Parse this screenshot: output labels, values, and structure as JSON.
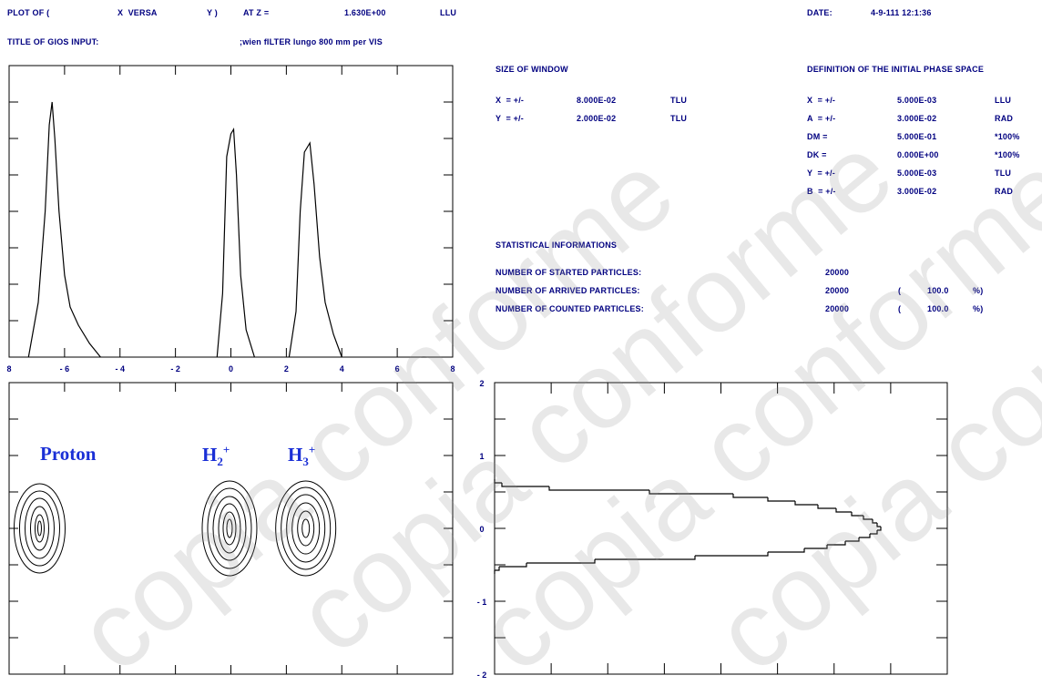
{
  "header": {
    "plot_of": "PLOT OF (",
    "x_versa": "X  VERSA",
    "y_paren": "Y )",
    "at_z": "AT Z =",
    "z_value": "1.630E+00",
    "z_unit": "LLU",
    "date_label": "DATE:",
    "date_value": "4-9-111 12:1:36",
    "title_label": "TITLE OF GIOS INPUT:",
    "title_value": ";wien fILTER lungo 800 mm per VIS"
  },
  "window": {
    "heading": "SIZE OF WINDOW",
    "rows": [
      {
        "name": "X  = +/-",
        "value": "8.000E-02",
        "unit": "TLU"
      },
      {
        "name": "Y  = +/-",
        "value": "2.000E-02",
        "unit": "TLU"
      }
    ]
  },
  "phase_space": {
    "heading": "DEFINITION OF THE INITIAL PHASE SPACE",
    "rows": [
      {
        "name": "X  = +/-",
        "value": "5.000E-03",
        "unit": "LLU"
      },
      {
        "name": "A  = +/-",
        "value": "3.000E-02",
        "unit": "RAD"
      },
      {
        "name": "DM =",
        "value": "5.000E-01",
        "unit": "*100%"
      },
      {
        "name": "DK =",
        "value": "0.000E+00",
        "unit": "*100%"
      },
      {
        "name": "Y  = +/-",
        "value": "5.000E-03",
        "unit": "TLU"
      },
      {
        "name": "B  = +/-",
        "value": "3.000E-02",
        "unit": "RAD"
      }
    ]
  },
  "statistics": {
    "heading": "STATISTICAL INFORMATIONS",
    "rows": [
      {
        "label": "NUMBER OF STARTED PARTICLES:",
        "count": "20000",
        "open": "",
        "pct": "",
        "close": ""
      },
      {
        "label": "NUMBER OF ARRIVED PARTICLES:",
        "count": "20000",
        "open": "(",
        "pct": "100.0",
        "close": "%)"
      },
      {
        "label": "NUMBER OF COUNTED PARTICLES:",
        "count": "20000",
        "open": "(",
        "pct": "100.0",
        "close": "%)"
      }
    ]
  },
  "watermark": "copia conforme",
  "chart_data": [
    {
      "type": "line",
      "x_tick_labels": [
        "8",
        "- 6",
        "- 4",
        "- 2",
        "0",
        "2",
        "4",
        "6",
        "8"
      ],
      "xlim": [
        -8,
        8
      ],
      "series": [
        {
          "x": [
            -7.3,
            -6.95,
            -6.7,
            -6.55,
            -6.45,
            -6.35,
            -6.2,
            -6.0,
            -5.8,
            -5.5,
            -5.1,
            -4.7
          ],
          "y": [
            0,
            60,
            160,
            255,
            280,
            240,
            160,
            90,
            55,
            35,
            15,
            0
          ]
        },
        {
          "x": [
            -0.5,
            -0.3,
            -0.15,
            0.0,
            0.1,
            0.2,
            0.35,
            0.55,
            0.85
          ],
          "y": [
            0,
            70,
            220,
            245,
            250,
            200,
            90,
            30,
            0
          ]
        },
        {
          "x": [
            2.1,
            2.35,
            2.5,
            2.65,
            2.85,
            3.0,
            3.2,
            3.4,
            3.7,
            4.0
          ],
          "y": [
            0,
            50,
            160,
            225,
            235,
            190,
            110,
            60,
            25,
            0
          ]
        }
      ]
    },
    {
      "type": "scatter",
      "annotations": [
        "Proton",
        "H",
        "H"
      ],
      "sub_labels": [
        "2",
        "3"
      ],
      "sup_labels": [
        "+",
        "+"
      ],
      "centers": [
        {
          "x": -6.9,
          "y": 0.0
        },
        {
          "x": -0.05,
          "y": 0.0
        },
        {
          "x": 2.7,
          "y": 0.0
        }
      ]
    },
    {
      "type": "line",
      "y_tick_labels": [
        "2",
        "1",
        "0",
        "- 1",
        "- 2"
      ],
      "ylim": [
        -2,
        2
      ],
      "profile": [
        {
          "y": 0.65,
          "v": 0
        },
        {
          "y": 0.6,
          "v": 8
        },
        {
          "y": 0.55,
          "v": 60
        },
        {
          "y": 0.5,
          "v": 170
        },
        {
          "y": 0.45,
          "v": 262
        },
        {
          "y": 0.4,
          "v": 300
        },
        {
          "y": 0.35,
          "v": 330
        },
        {
          "y": 0.3,
          "v": 355
        },
        {
          "y": 0.25,
          "v": 375
        },
        {
          "y": 0.2,
          "v": 392
        },
        {
          "y": 0.15,
          "v": 405
        },
        {
          "y": 0.1,
          "v": 415
        },
        {
          "y": 0.05,
          "v": 420
        },
        {
          "y": 0.0,
          "v": 424
        },
        {
          "y": -0.05,
          "v": 420
        },
        {
          "y": -0.1,
          "v": 412
        },
        {
          "y": -0.15,
          "v": 400
        },
        {
          "y": -0.2,
          "v": 385
        },
        {
          "y": -0.25,
          "v": 365
        },
        {
          "y": -0.3,
          "v": 340
        },
        {
          "y": -0.35,
          "v": 300
        },
        {
          "y": -0.4,
          "v": 220
        },
        {
          "y": -0.45,
          "v": 110
        },
        {
          "y": -0.5,
          "v": 35
        },
        {
          "y": -0.55,
          "v": 5
        },
        {
          "y": -0.6,
          "v": 0
        }
      ]
    }
  ]
}
